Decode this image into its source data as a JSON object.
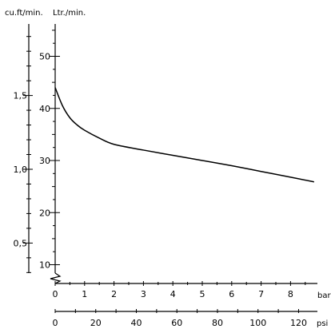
{
  "chart_data": {
    "type": "line",
    "title": "",
    "units": {
      "flow_cuft": "cu.ft/min.",
      "flow_ltr": "Ltr./min.",
      "pressure_bar": "bar",
      "pressure_psi": "psi"
    },
    "xlabel": "bar",
    "x2label": "psi",
    "ylabel": "Ltr./min.",
    "y2label": "cu.ft/min.",
    "xlim": [
      0,
      9
    ],
    "ylim": [
      7,
      57
    ],
    "x_ticks": [
      0,
      1,
      2,
      3,
      4,
      5,
      6,
      7,
      8
    ],
    "x2_ticks": [
      "0",
      "20",
      "40",
      "60",
      "80",
      "100",
      "120"
    ],
    "y_ticks": [
      10,
      20,
      30,
      40,
      50
    ],
    "y2_ticks": [
      "0,5",
      "1,0",
      "1,5"
    ],
    "y_axis_break": true,
    "grid": false,
    "series": [
      {
        "x": [
          0,
          0.25,
          0.5,
          0.75,
          1,
          1.5,
          2,
          3,
          4,
          5,
          6,
          7,
          8,
          8.8
        ],
        "y": [
          44,
          40.5,
          38.2,
          36.8,
          35.8,
          34.3,
          33.1,
          32,
          31,
          30,
          29,
          27.9,
          26.8,
          25.9
        ]
      }
    ]
  }
}
